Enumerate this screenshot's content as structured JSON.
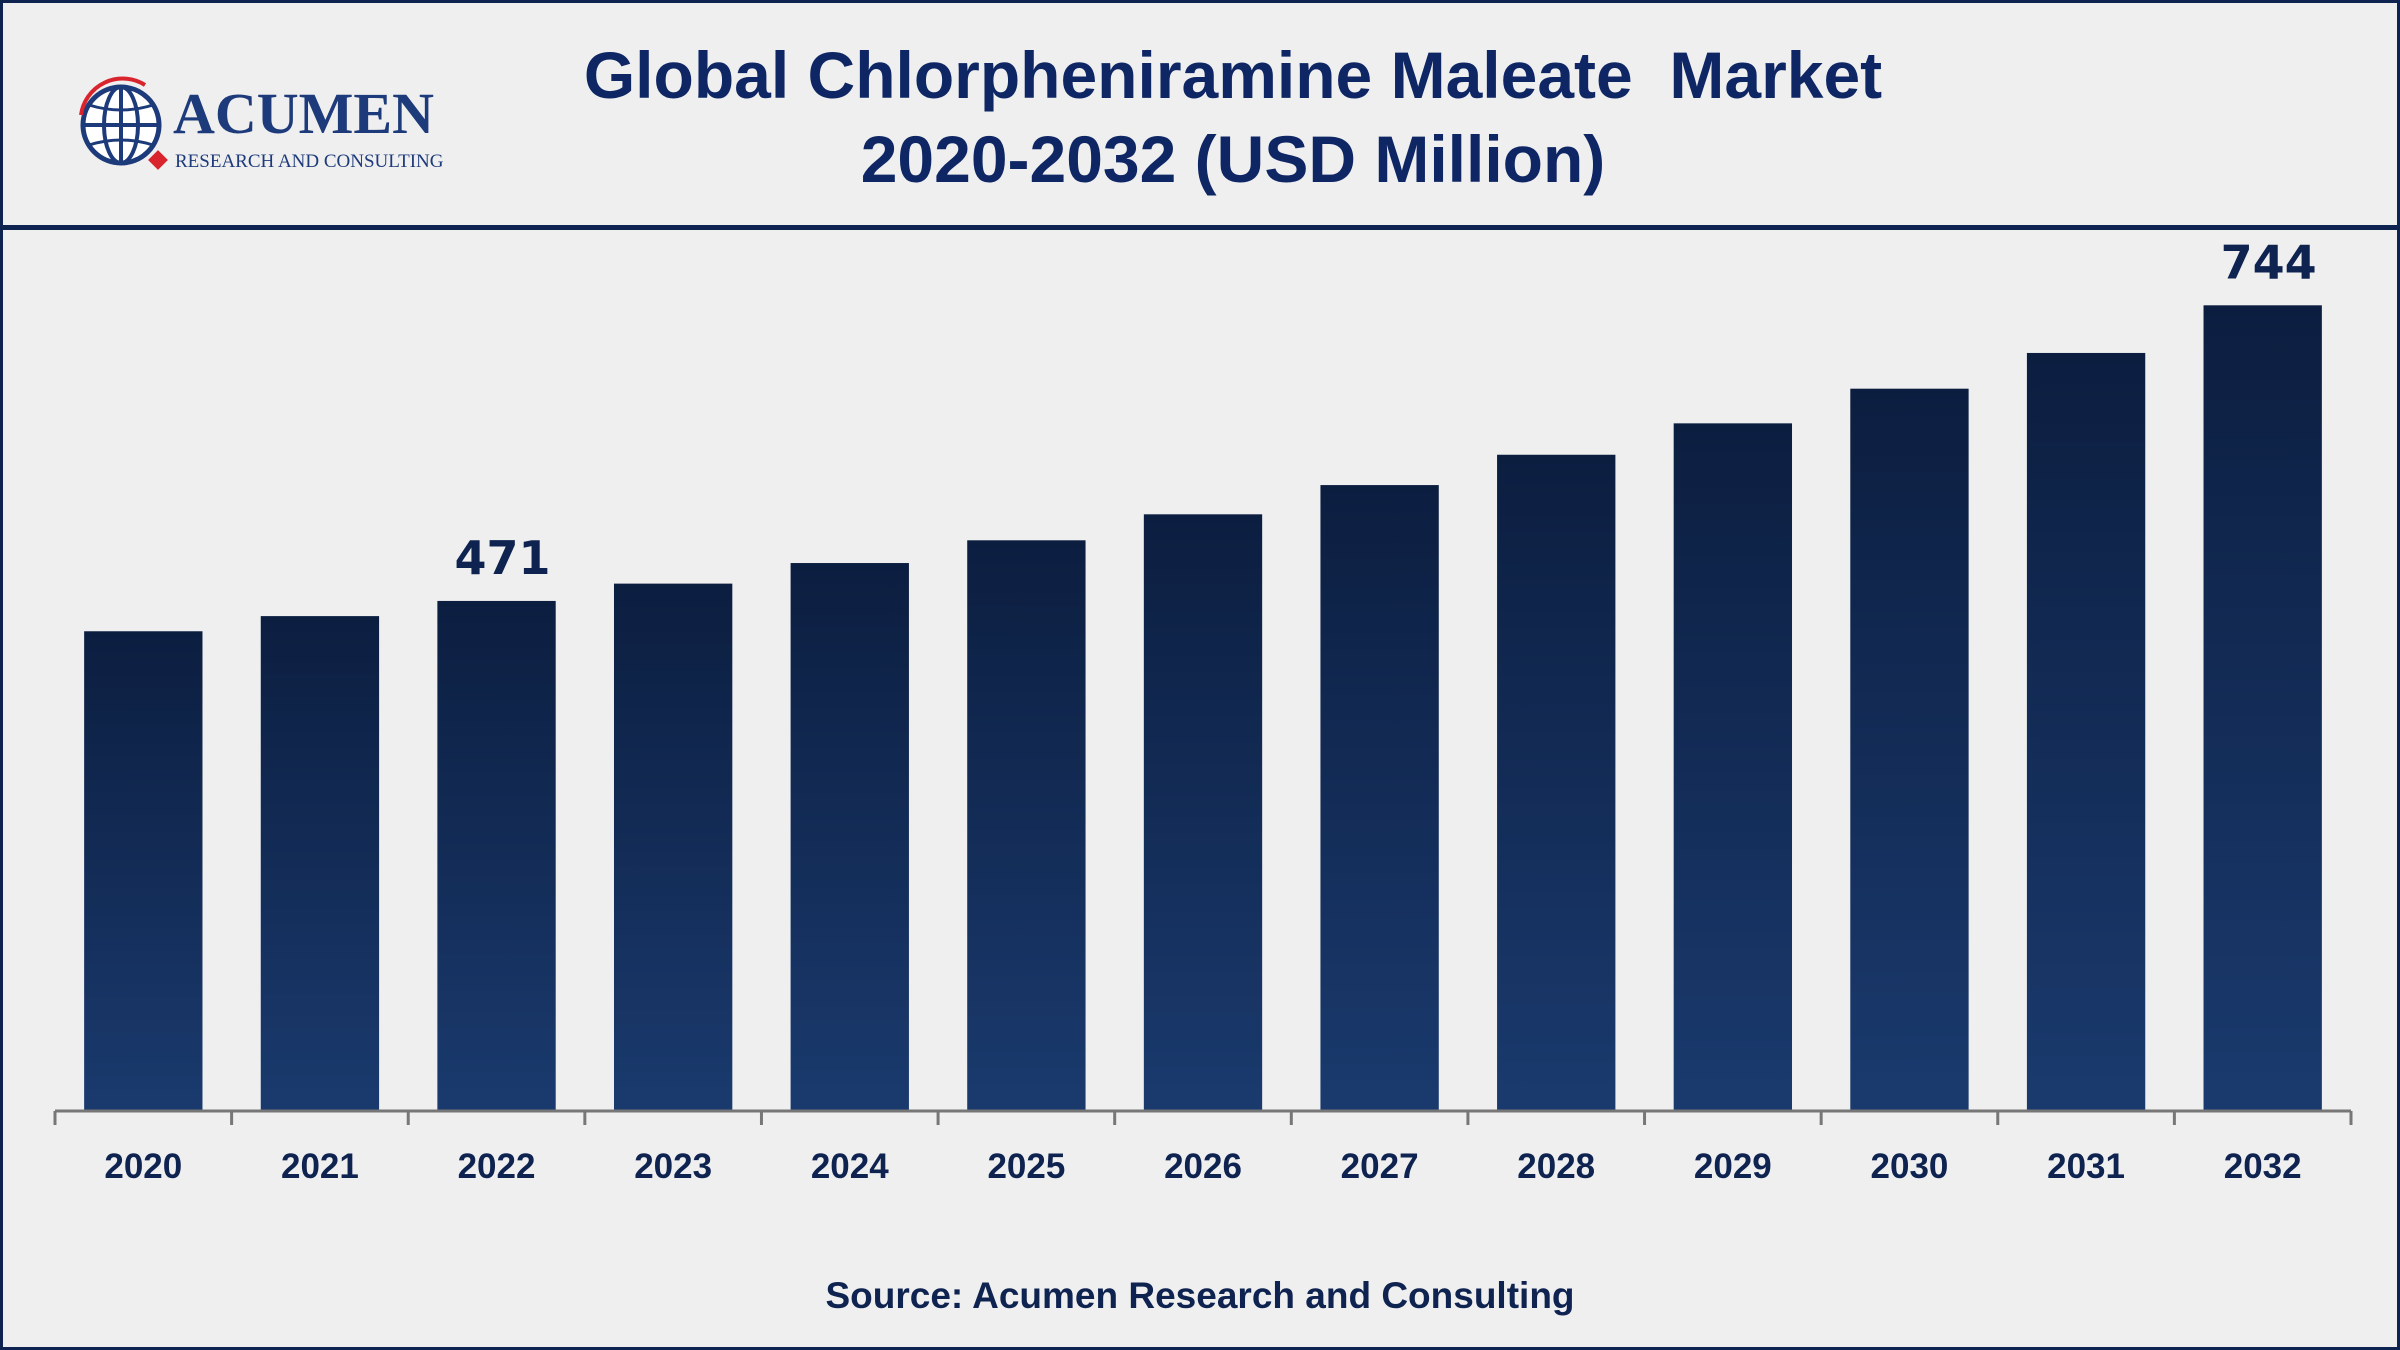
{
  "header": {
    "title_line1": "Global Chlorpheniramine Maleate  Market",
    "title_line2": "2020-2032 (USD Million)"
  },
  "logo": {
    "name": "ACUMEN",
    "tagline": "RESEARCH AND CONSULTING",
    "icon": "globe-icon"
  },
  "footer": {
    "source": "Source: Acumen Research and Consulting"
  },
  "colors": {
    "bar_top": "#0c1e40",
    "bar_bottom": "#1a3a6e",
    "text": "#0f2350",
    "axis": "#777777"
  },
  "chart_data": {
    "type": "bar",
    "title": "Global Chlorpheniramine Maleate  Market 2020-2032 (USD Million)",
    "xlabel": "",
    "ylabel": "",
    "categories": [
      "2020",
      "2021",
      "2022",
      "2023",
      "2024",
      "2025",
      "2026",
      "2027",
      "2028",
      "2029",
      "2030",
      "2031",
      "2032"
    ],
    "values": [
      443,
      457,
      471,
      487,
      506,
      527,
      551,
      578,
      606,
      635,
      667,
      700,
      744
    ],
    "data_labels": [
      {
        "category": "2022",
        "text": "471"
      },
      {
        "category": "2032",
        "text": "744"
      }
    ],
    "ylim": [
      0,
      820
    ],
    "grid": false,
    "legend": "none"
  }
}
